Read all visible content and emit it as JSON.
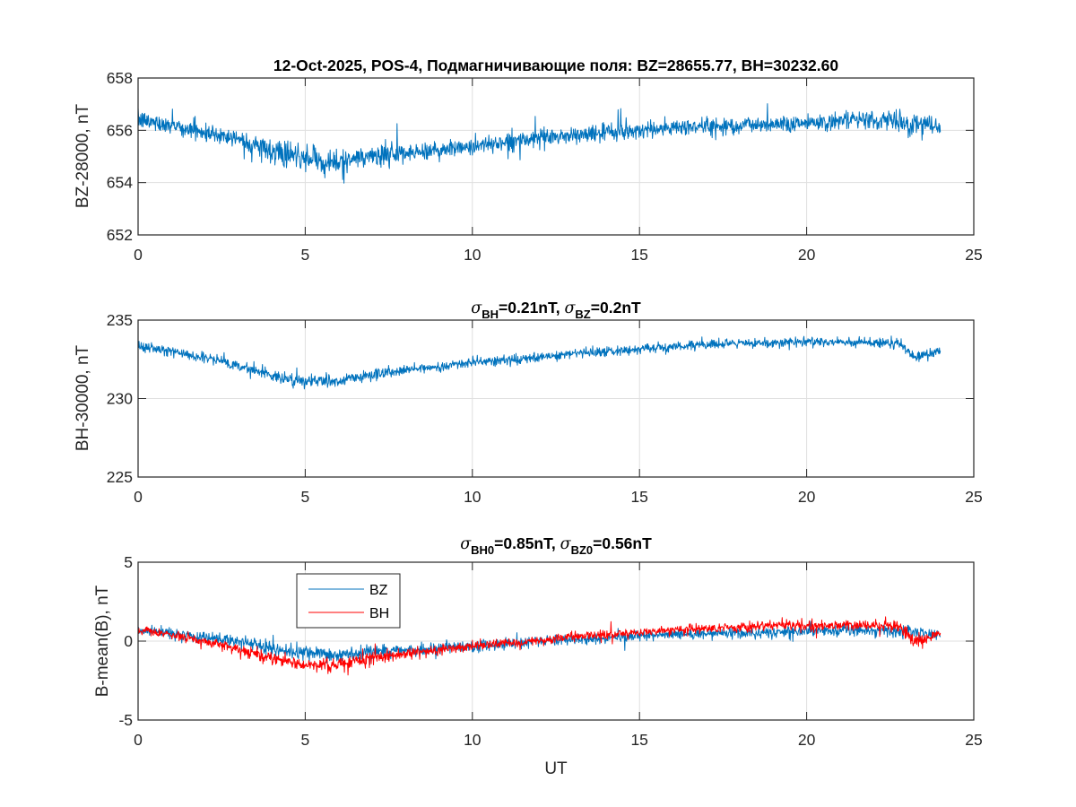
{
  "chart_data": [
    {
      "type": "line",
      "title": "12-Oct-2025, POS-4, Подмагничивающие поля: BZ=28655.77,  BH=30232.60",
      "xlabel": "",
      "ylabel": "BZ-28000, nT",
      "xlim": [
        0,
        25
      ],
      "ylim": [
        652,
        658
      ],
      "xticks": [
        "0",
        "5",
        "10",
        "15",
        "20",
        "25"
      ],
      "yticks": [
        "652",
        "654",
        "656",
        "658"
      ],
      "grid": true,
      "colors": {
        "BZ": "#0072BD"
      },
      "series": [
        {
          "name": "BZ",
          "color": "#0072BD",
          "noise": 0.28,
          "trend": {
            "x": [
              0,
              1,
              2,
              3,
              4,
              5,
              6,
              7,
              8,
              10,
              12,
              14,
              16,
              18,
              20,
              22,
              23,
              24
            ],
            "y": [
              656.4,
              656.2,
              655.9,
              655.7,
              655.2,
              654.9,
              654.8,
              655.0,
              655.1,
              655.4,
              655.7,
              655.9,
              656.1,
              656.2,
              656.3,
              656.4,
              656.3,
              656.1
            ]
          }
        }
      ]
    },
    {
      "type": "line",
      "title_parts": {
        "sym1": "σ",
        "sub1": "BH",
        "text1": "=0.21nT, ",
        "sym2": "σ",
        "sub2": "BZ",
        "text2": "=0.2nT"
      },
      "xlabel": "",
      "ylabel": "BH-30000, nT",
      "xlim": [
        0,
        25
      ],
      "ylim": [
        225,
        235
      ],
      "xticks": [
        "0",
        "5",
        "10",
        "15",
        "20",
        "25"
      ],
      "yticks": [
        "225",
        "230",
        "235"
      ],
      "grid": true,
      "series": [
        {
          "name": "BH",
          "color": "#0072BD",
          "noise": 0.25,
          "trend": {
            "x": [
              0,
              1,
              2,
              3,
              4,
              5,
              6,
              7,
              8,
              10,
              12,
              13,
              14,
              16,
              18,
              20,
              22,
              22.8,
              23.2,
              24
            ],
            "y": [
              233.3,
              233.0,
              232.6,
              232.1,
              231.5,
              231.1,
              231.1,
              231.5,
              231.8,
              232.3,
              232.6,
              232.9,
              233.0,
              233.3,
              233.5,
              233.6,
              233.6,
              233.5,
              232.6,
              233.0
            ]
          }
        }
      ]
    },
    {
      "type": "line",
      "title_parts": {
        "sym1": "σ",
        "sub1": "BH0",
        "text1": "=0.85nT, ",
        "sym2": "σ",
        "sub2": "BZ0",
        "text2": "=0.56nT"
      },
      "xlabel": "UT",
      "ylabel": "B-mean(B), nT",
      "xlim": [
        0,
        25
      ],
      "ylim": [
        -5,
        5
      ],
      "xticks": [
        "0",
        "5",
        "10",
        "15",
        "20",
        "25"
      ],
      "yticks": [
        "-5",
        "0",
        "5"
      ],
      "grid": true,
      "legend": {
        "entries": [
          "BZ",
          "BH"
        ],
        "placement": "top-left"
      },
      "series": [
        {
          "name": "BZ",
          "color": "#0072BD",
          "noise": 0.28,
          "trend": {
            "x": [
              0,
              1,
              2,
              3,
              4,
              5,
              6,
              7,
              8,
              10,
              12,
              14,
              16,
              18,
              20,
              22,
              23,
              24
            ],
            "y": [
              0.7,
              0.5,
              0.2,
              0.0,
              -0.5,
              -0.8,
              -0.9,
              -0.7,
              -0.6,
              -0.3,
              0.0,
              0.2,
              0.4,
              0.5,
              0.6,
              0.7,
              0.6,
              0.4
            ]
          }
        },
        {
          "name": "BH",
          "color": "#FF0000",
          "noise": 0.25,
          "trend": {
            "x": [
              0,
              1,
              2,
              3,
              4,
              5,
              6,
              7,
              8,
              10,
              12,
              13,
              14,
              16,
              18,
              20,
              22,
              22.8,
              23.2,
              24
            ],
            "y": [
              0.7,
              0.4,
              0.0,
              -0.5,
              -1.1,
              -1.5,
              -1.5,
              -1.1,
              -0.8,
              -0.3,
              0.0,
              0.3,
              0.4,
              0.7,
              0.9,
              1.0,
              1.0,
              0.9,
              0.0,
              0.4
            ]
          }
        }
      ]
    }
  ]
}
